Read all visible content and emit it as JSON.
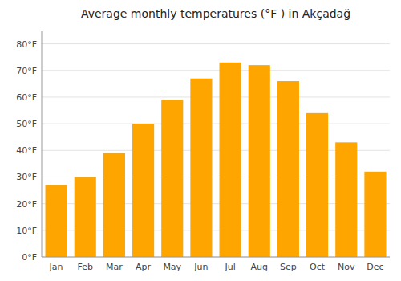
{
  "chart_data": {
    "type": "bar",
    "title": "Average monthly temperatures (°F ) in Akçadağ",
    "categories": [
      "Jan",
      "Feb",
      "Mar",
      "Apr",
      "May",
      "Jun",
      "Jul",
      "Aug",
      "Sep",
      "Oct",
      "Nov",
      "Dec"
    ],
    "values": [
      27,
      30,
      39,
      50,
      59,
      67,
      73,
      72,
      66,
      54,
      43,
      32
    ],
    "color": "#FFA500",
    "ylim": [
      0,
      85
    ],
    "yticks": [
      {
        "value": 0,
        "label": "0°F"
      },
      {
        "value": 10,
        "label": "10°F"
      },
      {
        "value": 20,
        "label": "20°F"
      },
      {
        "value": 30,
        "label": "30°F"
      },
      {
        "value": 40,
        "label": "40°F"
      },
      {
        "value": 50,
        "label": "50°F"
      },
      {
        "value": 60,
        "label": "60°F"
      },
      {
        "value": 70,
        "label": "70°F"
      },
      {
        "value": 80,
        "label": "80°F"
      }
    ],
    "grid": true
  }
}
